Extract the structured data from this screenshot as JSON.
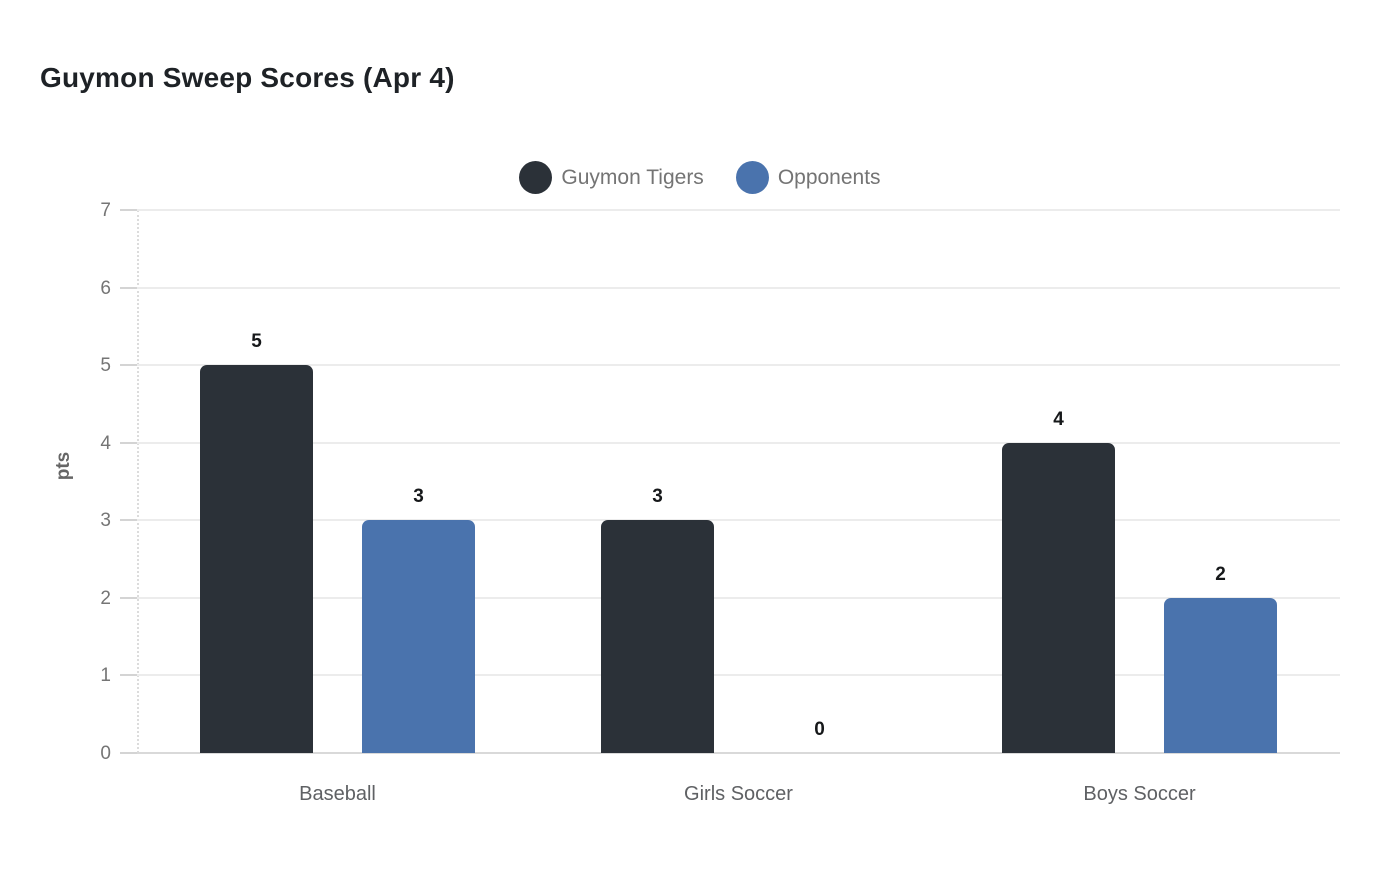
{
  "title": "Guymon Sweep Scores (Apr 4)",
  "chart_data": {
    "type": "bar",
    "title": "Guymon Sweep Scores (Apr 4)",
    "categories": [
      "Baseball",
      "Girls Soccer",
      "Boys Soccer"
    ],
    "series": [
      {
        "name": "Guymon Tigers",
        "color": "#2b3138",
        "values": [
          5,
          3,
          4
        ]
      },
      {
        "name": "Opponents",
        "color": "#4a73ad",
        "values": [
          3,
          0,
          2
        ]
      }
    ],
    "xlabel": "",
    "ylabel": "pts",
    "ylim": [
      0,
      7
    ],
    "yticks": [
      0,
      1,
      2,
      3,
      4,
      5,
      6,
      7
    ],
    "grid": true,
    "legend_position": "top-center",
    "data_labels": [
      [
        "5",
        "3",
        "4"
      ],
      [
        "3",
        "0",
        "2"
      ]
    ],
    "colors": {
      "background": "#ffffff",
      "title_text": "#1e2226",
      "legend_text": "#747474",
      "axis_text": "#757575",
      "category_text": "#5f6164",
      "value_label_text": "#16181a",
      "gridline": "#ececec",
      "baseline": "#d9d9d9"
    }
  }
}
